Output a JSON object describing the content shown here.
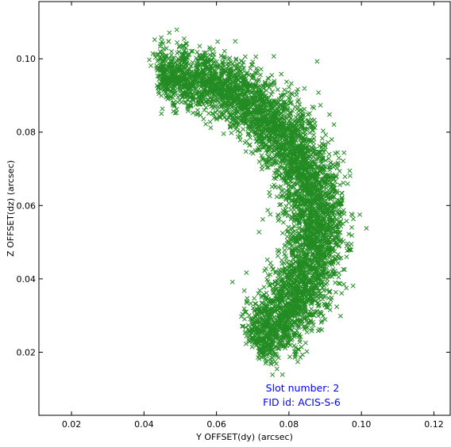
{
  "chart_data": {
    "type": "scatter",
    "title": "",
    "xlabel": "Y OFFSET(dy) (arcsec)",
    "ylabel": "Z OFFSET(dz) (arcsec)",
    "xlim": [
      0.011,
      0.1245
    ],
    "ylim": [
      0.0028,
      0.1156
    ],
    "xticks": [
      0.02,
      0.04,
      0.06,
      0.08,
      0.1,
      0.12
    ],
    "xtick_labels": [
      "0.02",
      "0.04",
      "0.06",
      "0.08",
      "0.10",
      "0.12"
    ],
    "yticks": [
      0.02,
      0.04,
      0.06,
      0.08,
      0.1
    ],
    "ytick_labels": [
      "0.02",
      "0.04",
      "0.06",
      "0.08",
      "0.10"
    ],
    "grid": false,
    "marker": "x",
    "series": [
      {
        "color": "#228b22",
        "shape": "arc",
        "description_points": [
          {
            "x": 0.044,
            "y": 0.095
          },
          {
            "x": 0.048,
            "y": 0.0955
          },
          {
            "x": 0.053,
            "y": 0.0955
          },
          {
            "x": 0.058,
            "y": 0.094
          },
          {
            "x": 0.063,
            "y": 0.0915
          },
          {
            "x": 0.068,
            "y": 0.089
          },
          {
            "x": 0.073,
            "y": 0.086
          },
          {
            "x": 0.0775,
            "y": 0.0815
          },
          {
            "x": 0.0815,
            "y": 0.076
          },
          {
            "x": 0.0845,
            "y": 0.07
          },
          {
            "x": 0.0865,
            "y": 0.064
          },
          {
            "x": 0.0875,
            "y": 0.058
          },
          {
            "x": 0.0875,
            "y": 0.052
          },
          {
            "x": 0.0865,
            "y": 0.046
          },
          {
            "x": 0.085,
            "y": 0.04
          },
          {
            "x": 0.0825,
            "y": 0.0345
          },
          {
            "x": 0.079,
            "y": 0.029
          },
          {
            "x": 0.0745,
            "y": 0.025
          },
          {
            "x": 0.07,
            "y": 0.0225
          }
        ],
        "point_count": 5200
      }
    ],
    "annotations": [
      {
        "text": "Slot number: 2",
        "color": "#0000ff"
      },
      {
        "text": "FID id: ACIS-S-6",
        "color": "#0000ff"
      }
    ]
  }
}
